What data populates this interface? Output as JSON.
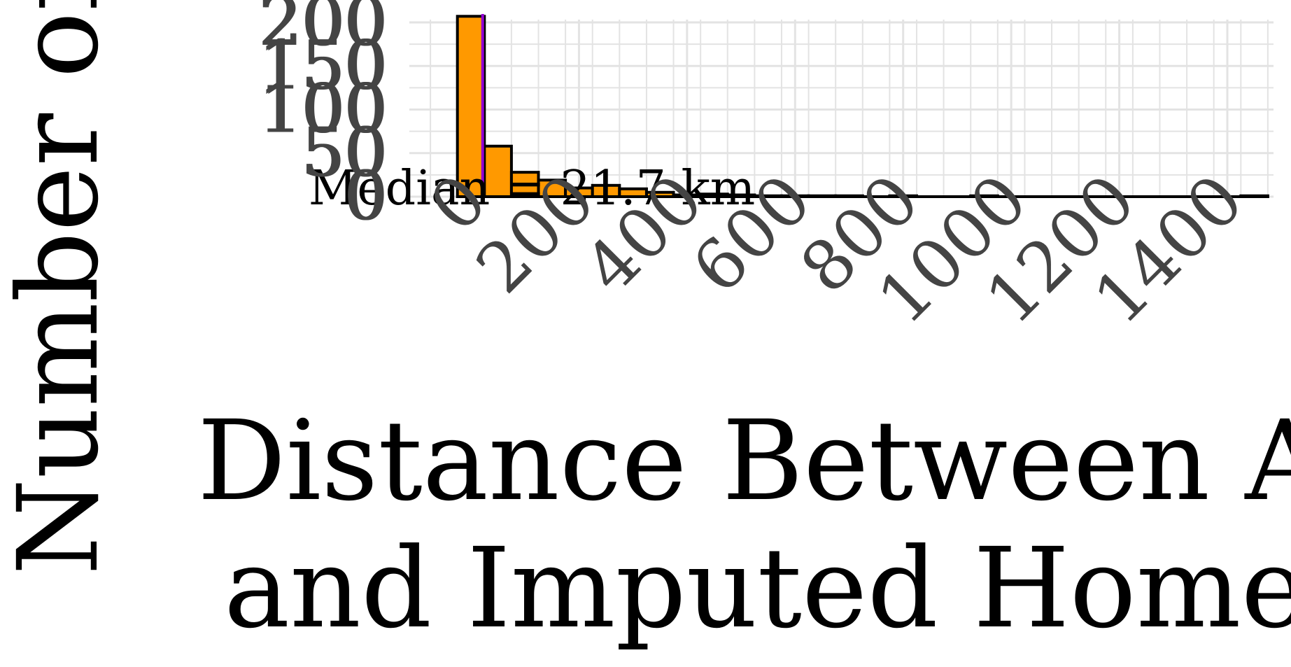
{
  "chart_data": {
    "type": "bar",
    "title": "",
    "xlabel_lines": [
      "Distance Between Act",
      "and Imputed Home ("
    ],
    "ylabel": "Number of",
    "x_tick_labels": [
      "0",
      "200",
      "400",
      "600",
      "800",
      "1000",
      "1200",
      "1400"
    ],
    "y_tick_labels_overlapping": [
      [
        "200",
        "150",
        "100",
        "50",
        "0"
      ],
      [
        "200",
        "150",
        "100",
        "50",
        "0"
      ]
    ],
    "annotation": "Median = 21.7 km",
    "median_line_value": 21.7,
    "bin_width": 50,
    "bin_lefts": [
      -25,
      25,
      75,
      125,
      175,
      225,
      275,
      325,
      375,
      425,
      475,
      525,
      575,
      625,
      675,
      725,
      775,
      825,
      875,
      925,
      975,
      1025,
      1075,
      1125,
      1175,
      1225,
      1275,
      1325,
      1375,
      1425
    ],
    "values": [
      207,
      58,
      28,
      19,
      10,
      13,
      9,
      5,
      2,
      3,
      2,
      1,
      1,
      1,
      1,
      0,
      1,
      0,
      0,
      1,
      0,
      0,
      0,
      0,
      0,
      0,
      0,
      0,
      0,
      1
    ],
    "xlim": [
      -75,
      1475
    ],
    "ylim": [
      0,
      210
    ],
    "grid": true,
    "colors": {
      "bar_fill": "#FF9900",
      "bar_edge": "#000000",
      "median_line": "#9400D3",
      "grid": "#E3E3E3",
      "text": "#000000",
      "tick_text": "#444444"
    }
  }
}
